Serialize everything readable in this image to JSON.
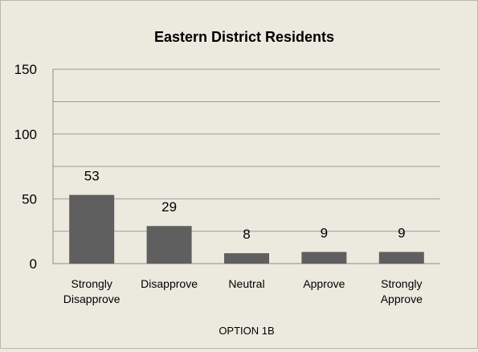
{
  "chart_data": {
    "type": "bar",
    "title": "Eastern District Residents",
    "xlabel": "OPTION 1B",
    "ylabel": "",
    "categories": [
      [
        "Strongly",
        "Disapprove"
      ],
      [
        "Disapprove"
      ],
      [
        "Neutral"
      ],
      [
        "Approve"
      ],
      [
        "Strongly",
        "Approve"
      ]
    ],
    "values": [
      53,
      29,
      8,
      9,
      9
    ],
    "data_labels": [
      "53",
      "29",
      "8",
      "9",
      "9"
    ],
    "ylim": [
      0,
      160
    ],
    "yticks": [
      0,
      50,
      100,
      150
    ],
    "grid_step": 25,
    "grid": true,
    "legend": "none",
    "colors": {
      "bar": "#5f5f5f",
      "background": "#ece9df",
      "gridline": "#9a9a9a"
    }
  }
}
